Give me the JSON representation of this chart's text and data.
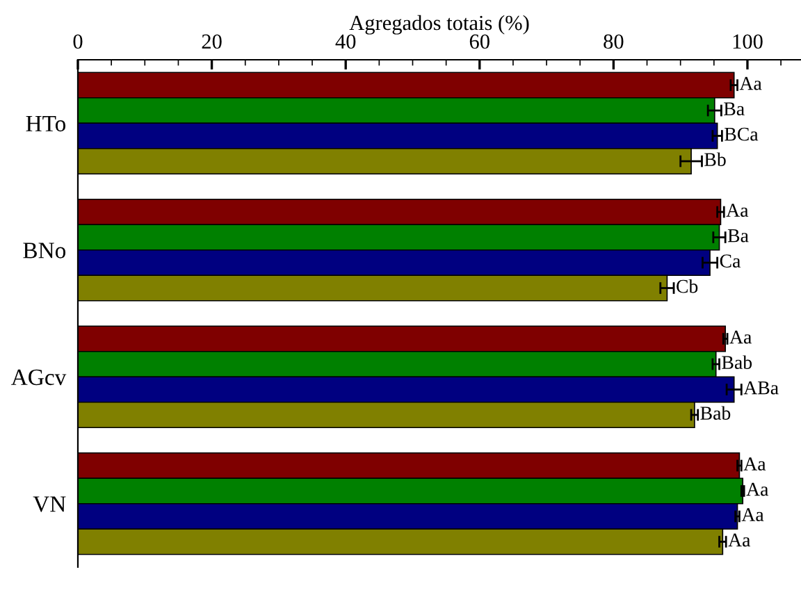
{
  "chart_data": {
    "type": "bar",
    "orientation": "horizontal",
    "xlabel": "Agregados totais (%)",
    "categories": [
      "HTo",
      "BNo",
      "AGcv",
      "VN"
    ],
    "xlim": [
      0,
      108
    ],
    "xticks": [
      0,
      20,
      40,
      60,
      80,
      100
    ],
    "grid": false,
    "legend": false,
    "series": [
      {
        "color": "#7f0000",
        "values": [
          98.0,
          96.0,
          96.7,
          98.8
        ],
        "errors": [
          0.5,
          0.5,
          0.3,
          0.3
        ],
        "value_labels": [
          "Aa",
          "Aa",
          "Aa",
          "Aa"
        ]
      },
      {
        "color": "#008000",
        "values": [
          95.1,
          95.8,
          95.3,
          99.3
        ],
        "errors": [
          1.0,
          0.9,
          0.5,
          0.2
        ],
        "value_labels": [
          "Ba",
          "Ba",
          "Bab",
          "Aa"
        ]
      },
      {
        "color": "#000080",
        "values": [
          95.5,
          94.4,
          98.0,
          98.5
        ],
        "errors": [
          0.7,
          1.1,
          1.1,
          0.3
        ],
        "value_labels": [
          "BCa",
          "Ca",
          "ABa",
          "Aa"
        ]
      },
      {
        "color": "#808000",
        "values": [
          91.6,
          88.0,
          92.1,
          96.3
        ],
        "errors": [
          1.6,
          1.0,
          0.5,
          0.5
        ],
        "value_labels": [
          "Bb",
          "Cb",
          "Bab",
          "Aa"
        ]
      }
    ]
  }
}
